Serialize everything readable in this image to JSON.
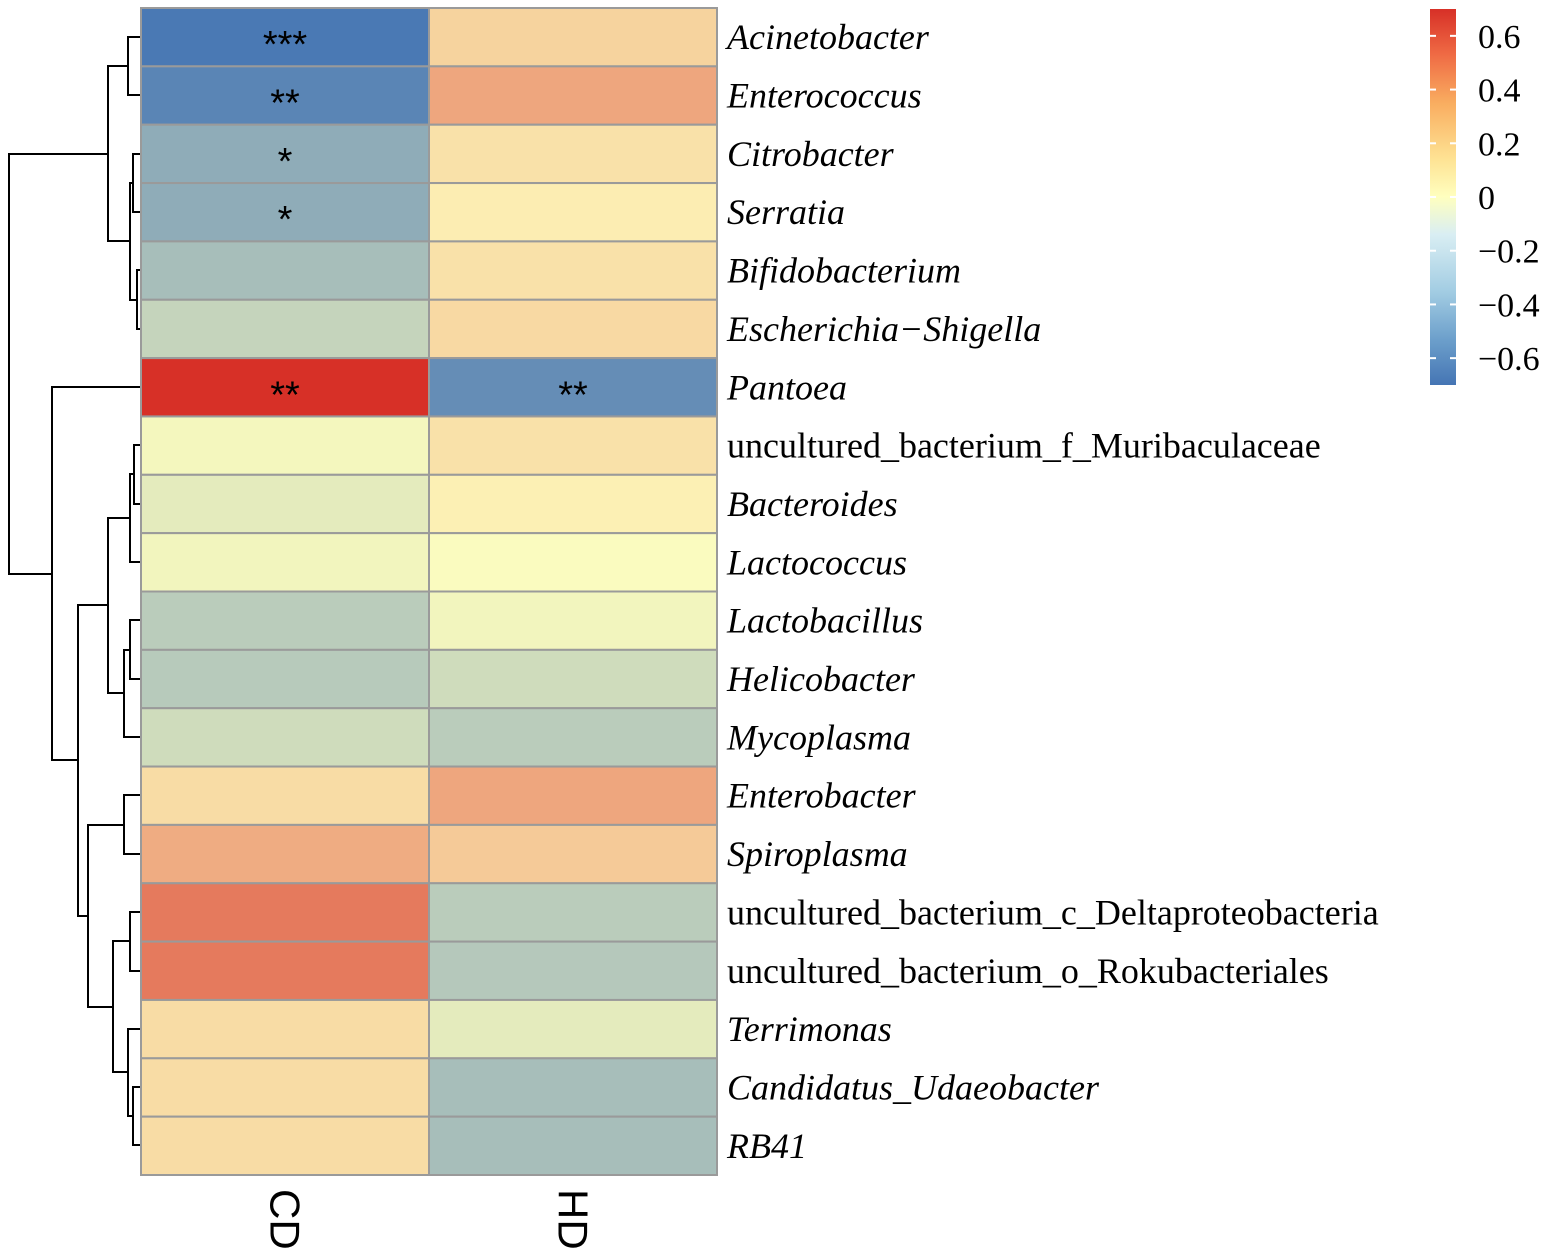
{
  "chart_data": {
    "type": "heatmap",
    "columns": [
      "CD",
      "HD"
    ],
    "rows": [
      {
        "label": "Acinetobacter",
        "italic": true,
        "values": [
          -0.68,
          0.15
        ],
        "sig": [
          "***",
          ""
        ]
      },
      {
        "label": "Enterococcus",
        "italic": true,
        "values": [
          -0.62,
          0.3
        ],
        "sig": [
          "**",
          ""
        ]
      },
      {
        "label": "Citrobacter",
        "italic": true,
        "values": [
          -0.42,
          0.1
        ],
        "sig": [
          "*",
          ""
        ]
      },
      {
        "label": "Serratia",
        "italic": true,
        "values": [
          -0.42,
          0.06
        ],
        "sig": [
          "*",
          ""
        ]
      },
      {
        "label": "Bifidobacterium",
        "italic": true,
        "values": [
          -0.33,
          0.1
        ],
        "sig": [
          "",
          ""
        ]
      },
      {
        "label": "Escherichia−Shigella",
        "italic": true,
        "values": [
          -0.22,
          0.13
        ],
        "sig": [
          "",
          ""
        ]
      },
      {
        "label": "Pantoea",
        "italic": true,
        "values": [
          0.7,
          -0.58
        ],
        "sig": [
          "**",
          "**"
        ]
      },
      {
        "label": "uncultured_bacterium_f_Muribaculaceae",
        "italic": false,
        "values": [
          -0.04,
          0.1
        ],
        "sig": [
          "",
          ""
        ]
      },
      {
        "label": "Bacteroides",
        "italic": true,
        "values": [
          -0.1,
          0.05
        ],
        "sig": [
          "",
          ""
        ]
      },
      {
        "label": "Lactococcus",
        "italic": true,
        "values": [
          -0.05,
          -0.02
        ],
        "sig": [
          "",
          ""
        ]
      },
      {
        "label": "Lactobacillus",
        "italic": true,
        "values": [
          -0.26,
          -0.05
        ],
        "sig": [
          "",
          ""
        ]
      },
      {
        "label": "Helicobacter",
        "italic": true,
        "values": [
          -0.27,
          -0.18
        ],
        "sig": [
          "",
          ""
        ]
      },
      {
        "label": "Mycoplasma",
        "italic": true,
        "values": [
          -0.18,
          -0.26
        ],
        "sig": [
          "",
          ""
        ]
      },
      {
        "label": "Enterobacter",
        "italic": true,
        "values": [
          0.12,
          0.3
        ],
        "sig": [
          "",
          ""
        ]
      },
      {
        "label": "Spiroplasma",
        "italic": true,
        "values": [
          0.28,
          0.18
        ],
        "sig": [
          "",
          ""
        ]
      },
      {
        "label": "uncultured_bacterium_c_Deltaproteobacteria",
        "italic": false,
        "values": [
          0.45,
          -0.26
        ],
        "sig": [
          "",
          ""
        ]
      },
      {
        "label": "uncultured_bacterium_o_Rokubacteriales",
        "italic": false,
        "values": [
          0.45,
          -0.28
        ],
        "sig": [
          "",
          ""
        ]
      },
      {
        "label": "Terrimonas",
        "italic": true,
        "values": [
          0.12,
          -0.1
        ],
        "sig": [
          "",
          ""
        ]
      },
      {
        "label": "Candidatus_Udaeobacter",
        "italic": true,
        "values": [
          0.12,
          -0.33
        ],
        "sig": [
          "",
          ""
        ]
      },
      {
        "label": "RB41",
        "italic": true,
        "values": [
          0.12,
          -0.33
        ],
        "sig": [
          "",
          ""
        ]
      }
    ],
    "color_scale": {
      "range": [
        -0.7,
        0.7
      ],
      "ticks": [
        0.6,
        0.4,
        0.2,
        0,
        -0.2,
        -0.4,
        -0.6
      ],
      "tick_labels": [
        "0.6",
        "0.4",
        "0.2",
        "0",
        "−0.2",
        "−0.4",
        "−0.6"
      ],
      "low_color": "#4575b4",
      "mid_color": "#ffffbf",
      "high_color": "#d73027"
    }
  }
}
